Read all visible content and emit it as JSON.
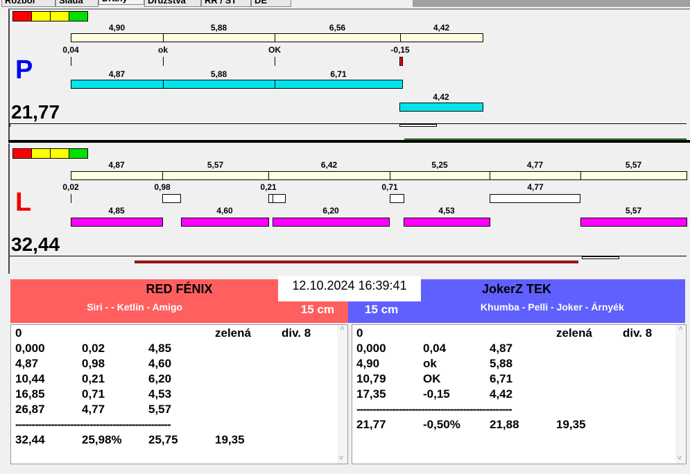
{
  "tabs": [
    "Rozbor",
    "Sláda",
    "Dráhy",
    "Družstva",
    "RR / ST",
    "DE"
  ],
  "selected_tab": "Dráhy",
  "colors": {
    "indicator": [
      "#ff0000",
      "#ffff00",
      "#ffff00",
      "#00e000"
    ],
    "cream": "#ffffe0",
    "cyan": "#00e5ee",
    "magenta": "#ff00ff",
    "red_team": "#ff5f5f",
    "blue_team": "#6060ff"
  },
  "lane_p": {
    "letter": "P",
    "total": "21,77",
    "top_values": [
      "4,90",
      "5,88",
      "6,56",
      "4,42"
    ],
    "mid_values": [
      "0,04",
      "ok",
      "OK",
      "-0,15"
    ],
    "bottom_values": [
      "4,87",
      "5,88",
      "6,71"
    ],
    "extra_value": "4,42"
  },
  "lane_l": {
    "letter": "L",
    "total": "32,44",
    "top_values": [
      "4,87",
      "5,57",
      "6,42",
      "5,25",
      "4,77",
      "5,57"
    ],
    "mid_values": [
      "0,02",
      "0,98",
      "0,21",
      "0,71",
      "4,77"
    ],
    "bottom_values": [
      "4,85",
      "4,60",
      "6,20",
      "4,53",
      "5,57"
    ]
  },
  "timestamp": "12.10.2024 16:39:41",
  "team_left": {
    "name": "RED FÉNIX",
    "members": "Siri -  - Ketlin - Amigo",
    "distance": "15 cm",
    "header": [
      "0",
      "zelená",
      "div. 8"
    ],
    "rows": [
      [
        "0,000",
        "0,02",
        "4,85"
      ],
      [
        "4,87",
        "0,98",
        "4,60"
      ],
      [
        "10,44",
        "0,21",
        "6,20"
      ],
      [
        "16,85",
        "0,71",
        "4,53"
      ],
      [
        "26,87",
        "4,77",
        "5,57"
      ]
    ],
    "separator": "------------------------------------------------",
    "totals": [
      "32,44",
      "25,98%",
      "25,75",
      "19,35"
    ]
  },
  "team_right": {
    "name": "JokerZ TEK",
    "members": "Khumba - Pelli - Joker - Árnyék",
    "distance": "15 cm",
    "header": [
      "0",
      "zelená",
      "div. 8"
    ],
    "rows": [
      [
        "0,000",
        "0,04",
        "4,87"
      ],
      [
        "4,90",
        "ok",
        "5,88"
      ],
      [
        "10,79",
        "OK",
        "6,71"
      ],
      [
        "17,35",
        "-0,15",
        "4,42"
      ]
    ],
    "separator": "------------------------------------------------",
    "totals": [
      "21,77",
      "-0,50%",
      "21,88",
      "19,35"
    ]
  }
}
